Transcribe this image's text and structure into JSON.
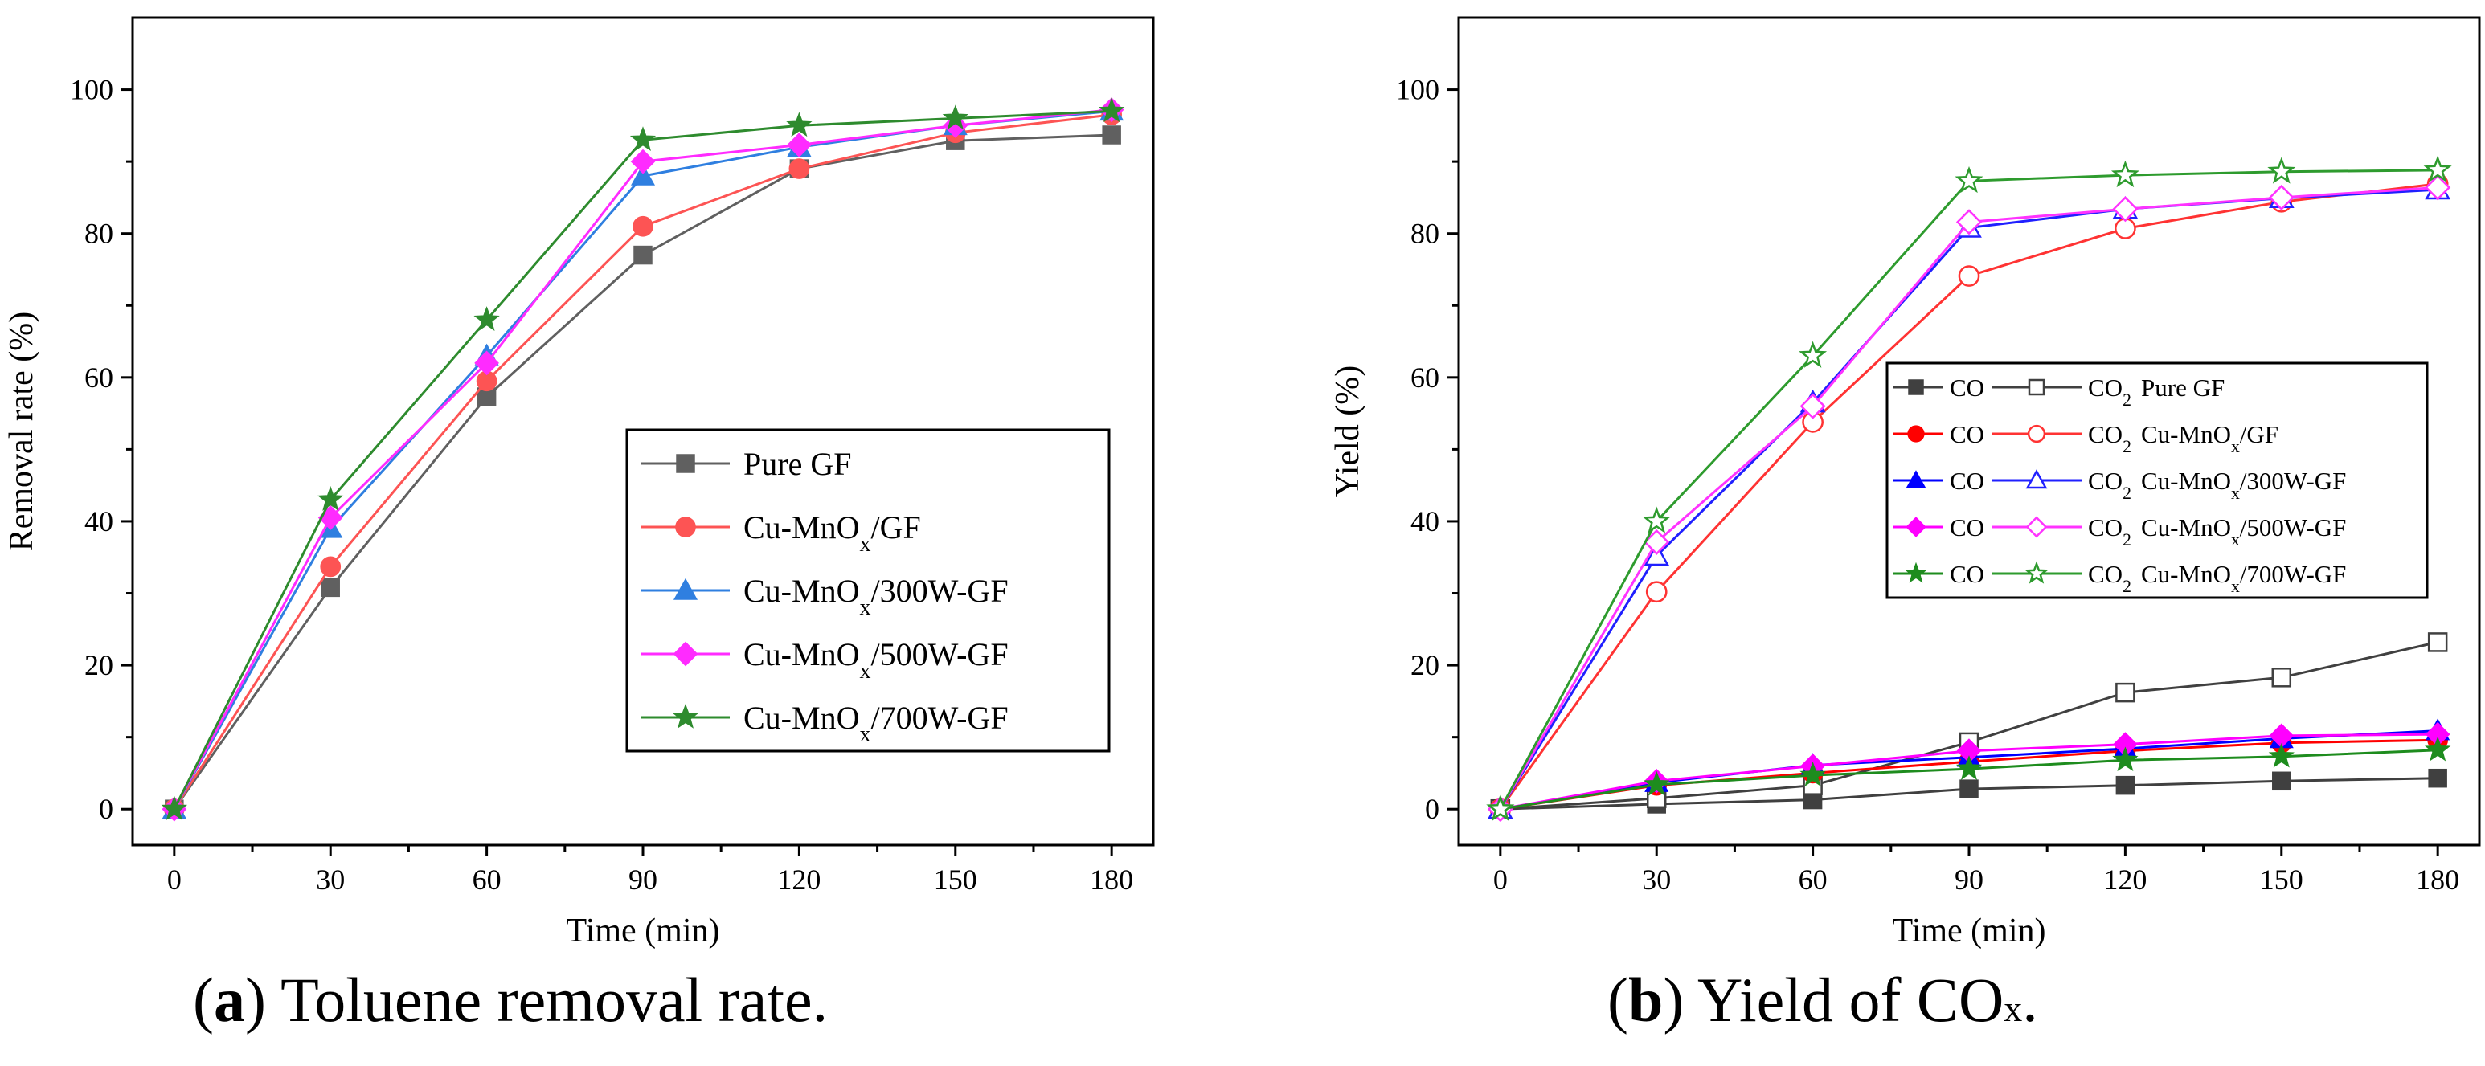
{
  "chart_data": [
    {
      "type": "line",
      "panel": "a",
      "xlabel": "Time (min)",
      "ylabel": "Removal rate (%)",
      "xlim": [
        -8,
        188
      ],
      "ylim": [
        -5,
        110
      ],
      "xticks": [
        0,
        30,
        60,
        90,
        120,
        150,
        180
      ],
      "yticks": [
        0,
        20,
        40,
        60,
        80,
        100
      ],
      "x": [
        0,
        30,
        60,
        90,
        120,
        150,
        180
      ],
      "legend_position": "center-right",
      "series": [
        {
          "name": "Pure GF",
          "color": "#606060",
          "marker": "square",
          "values": [
            0,
            30.8,
            57.3,
            77,
            89,
            92.9,
            93.7
          ]
        },
        {
          "name": "Cu-MnOx/GF",
          "color": "#fd5454",
          "marker": "circle",
          "values": [
            0,
            33.7,
            59.5,
            81,
            89,
            94,
            96.5
          ]
        },
        {
          "name": "Cu-MnOx/300W-GF",
          "color": "#2f7fe0",
          "marker": "triangle",
          "values": [
            0,
            39,
            63,
            88,
            92,
            95,
            97
          ]
        },
        {
          "name": "Cu-MnOx/500W-GF",
          "color": "#ff2bff",
          "marker": "diamond",
          "values": [
            0,
            40.5,
            62,
            90,
            92.3,
            95,
            97.2
          ]
        },
        {
          "name": "Cu-MnOx/700W-GF",
          "color": "#2e8b2e",
          "marker": "star",
          "values": [
            0,
            43,
            68,
            93,
            95,
            96,
            97
          ]
        }
      ]
    },
    {
      "type": "line",
      "panel": "b",
      "xlabel": "Time (min)",
      "ylabel": "Yield (%)",
      "xlim": [
        -8,
        188
      ],
      "ylim": [
        -5,
        110
      ],
      "xticks": [
        0,
        30,
        60,
        90,
        120,
        150,
        180
      ],
      "yticks": [
        0,
        20,
        40,
        60,
        80,
        100
      ],
      "x": [
        0,
        30,
        60,
        90,
        120,
        150,
        180
      ],
      "legend_position": "center-right",
      "legend_rows": [
        {
          "co": "CO",
          "co2": "CO2",
          "sample": "Pure GF"
        },
        {
          "co": "CO",
          "co2": "CO2",
          "sample": "Cu-MnOx/GF"
        },
        {
          "co": "CO",
          "co2": "CO2",
          "sample": "Cu-MnOx/300W-GF"
        },
        {
          "co": "CO",
          "co2": "CO2",
          "sample": "Cu-MnOx/500W-GF"
        },
        {
          "co": "CO",
          "co2": "CO2",
          "sample": "Cu-MnOx/700W-GF"
        }
      ],
      "series": [
        {
          "name": "CO Pure GF",
          "color": "#404040",
          "marker": "square",
          "filled": true,
          "values": [
            0,
            0.7,
            1.3,
            2.8,
            3.3,
            3.9,
            4.3
          ]
        },
        {
          "name": "CO2 Pure GF",
          "color": "#404040",
          "marker": "square",
          "filled": false,
          "values": [
            0,
            1.5,
            3.3,
            9.3,
            16.2,
            18.3,
            23.2
          ]
        },
        {
          "name": "CO Cu-MnOx/GF",
          "color": "#ff0000",
          "marker": "circle",
          "filled": true,
          "values": [
            0,
            3.3,
            5.0,
            6.6,
            8.1,
            9.2,
            9.6
          ]
        },
        {
          "name": "CO2 Cu-MnOx/GF",
          "color": "#ff3333",
          "marker": "circle",
          "filled": false,
          "values": [
            0,
            30.2,
            53.8,
            74.1,
            80.7,
            84.4,
            86.9
          ]
        },
        {
          "name": "CO Cu-MnOx/300W-GF",
          "color": "#0000ff",
          "marker": "triangle",
          "filled": true,
          "values": [
            0,
            3.7,
            6.1,
            7.2,
            8.4,
            9.8,
            10.9
          ]
        },
        {
          "name": "CO2 Cu-MnOx/300W-GF",
          "color": "#2020ff",
          "marker": "triangle",
          "filled": false,
          "values": [
            0,
            35.2,
            56.5,
            80.8,
            83.4,
            84.9,
            86.1
          ]
        },
        {
          "name": "CO Cu-MnOx/500W-GF",
          "color": "#ff00ff",
          "marker": "diamond",
          "filled": true,
          "values": [
            0,
            3.9,
            6.0,
            8.1,
            9.0,
            10.2,
            10.4
          ]
        },
        {
          "name": "CO2 Cu-MnOx/500W-GF",
          "color": "#ff33ff",
          "marker": "diamond",
          "filled": false,
          "values": [
            0,
            37.1,
            56.0,
            81.6,
            83.4,
            85.0,
            86.4
          ]
        },
        {
          "name": "CO Cu-MnOx/700W-GF",
          "color": "#1e8c1e",
          "marker": "star",
          "filled": true,
          "values": [
            0,
            3.4,
            4.7,
            5.6,
            6.8,
            7.3,
            8.2
          ]
        },
        {
          "name": "CO2 Cu-MnOx/700W-GF",
          "color": "#2e9b2e",
          "marker": "star",
          "filled": false,
          "values": [
            0,
            40.0,
            63.0,
            87.3,
            88.1,
            88.6,
            88.8
          ]
        }
      ]
    }
  ],
  "captions": {
    "a": {
      "label": "a",
      "text": "Toluene removal rate."
    },
    "b": {
      "label": "b",
      "text": "Yield of CO",
      "subscript": "x",
      "suffix": "."
    }
  }
}
